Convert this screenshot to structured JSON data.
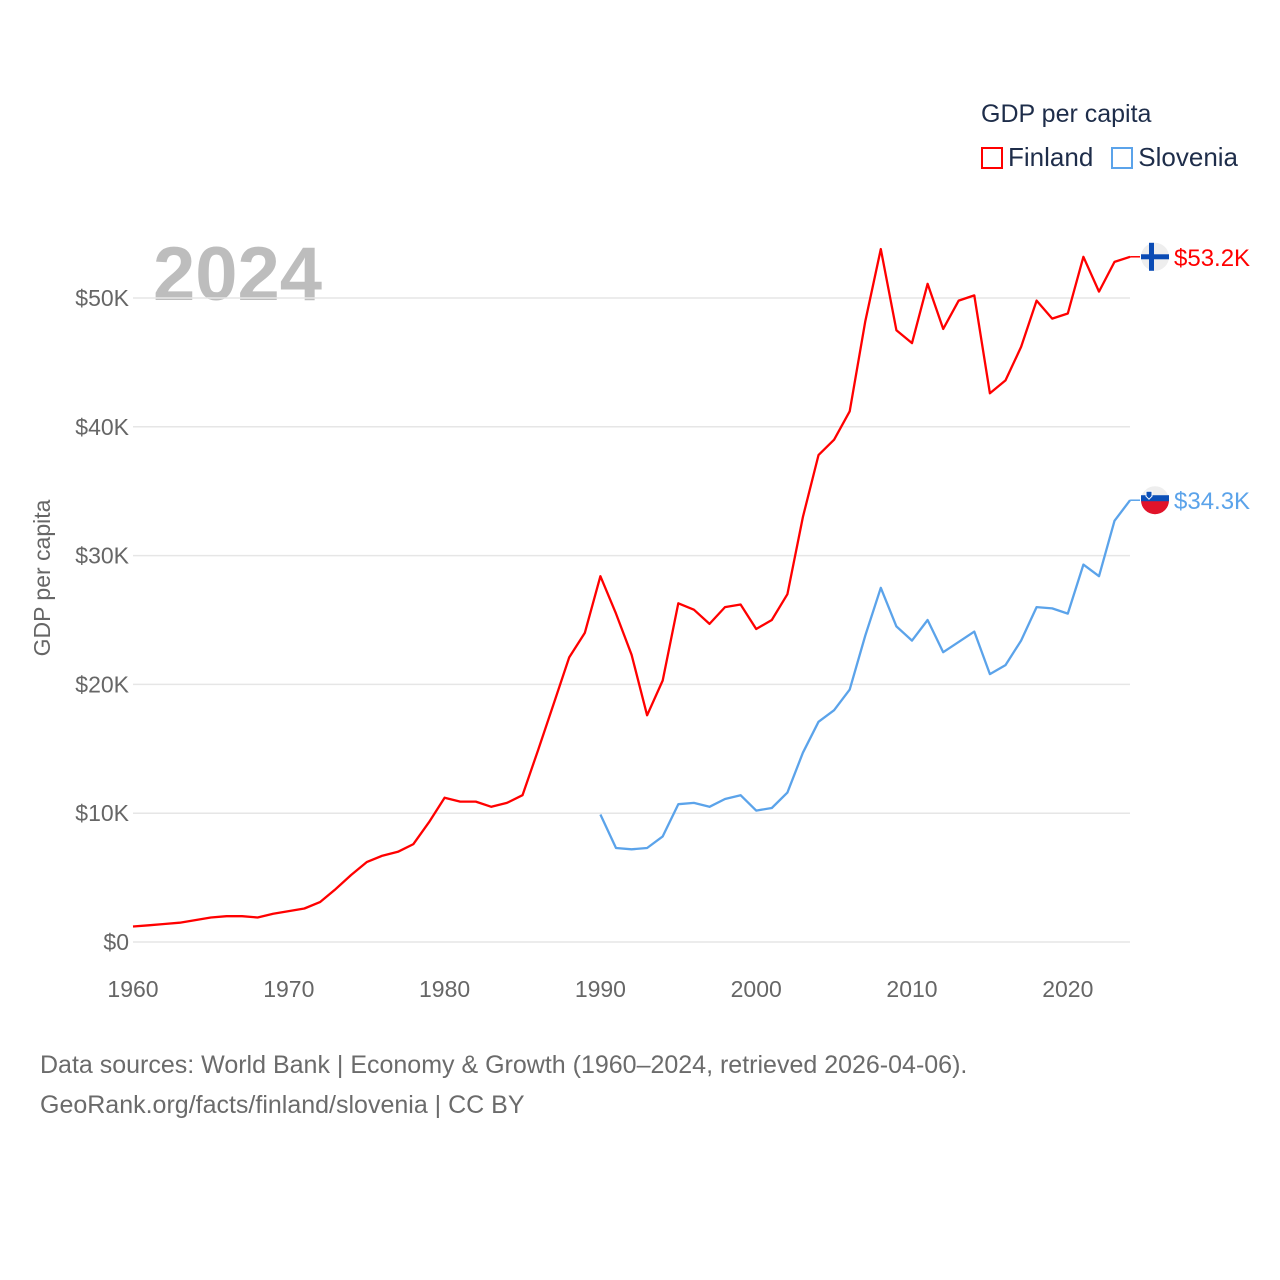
{
  "chart_data": {
    "type": "line",
    "title": "",
    "annotation_year": "2024",
    "xlabel": "",
    "ylabel": "GDP per capita",
    "xlim": [
      1960,
      2024
    ],
    "ylim": [
      0,
      55000
    ],
    "grid": true,
    "x_ticks": [
      "1960",
      "1970",
      "1980",
      "1990",
      "2000",
      "2010",
      "2020"
    ],
    "x_tick_values": [
      1960,
      1970,
      1980,
      1990,
      2000,
      2010,
      2020
    ],
    "y_ticks": [
      "$0",
      "$10K",
      "$20K",
      "$30K",
      "$40K",
      "$50K"
    ],
    "y_tick_values": [
      0,
      10000,
      20000,
      30000,
      40000,
      50000
    ],
    "legend": {
      "title": "GDP per capita",
      "placement": "top-right"
    },
    "series": [
      {
        "name": "Finland",
        "color": "#ff0000",
        "end_label": "$53.2K",
        "flag": "finland-flag",
        "x_start": 1960,
        "values": [
          1200,
          1300,
          1400,
          1500,
          1700,
          1900,
          2000,
          2000,
          1900,
          2200,
          2400,
          2600,
          3100,
          4100,
          5200,
          6200,
          6700,
          7000,
          7600,
          9300,
          11200,
          10900,
          10900,
          10500,
          10800,
          11400,
          14900,
          18500,
          22100,
          24000,
          28400,
          25500,
          22300,
          17600,
          20300,
          26300,
          25800,
          24700,
          26000,
          26200,
          24300,
          25000,
          27000,
          33000,
          37800,
          39000,
          41200,
          48200,
          53800,
          47500,
          46500,
          51100,
          47600,
          49800,
          50200,
          42600,
          43600,
          46200,
          49800,
          48400,
          48800,
          53200,
          50500,
          52800,
          53200
        ]
      },
      {
        "name": "Slovenia",
        "color": "#5ba3ea",
        "end_label": "$34.3K",
        "flag": "slovenia-flag",
        "x_start": 1990,
        "values": [
          9900,
          7300,
          7200,
          7300,
          8200,
          10700,
          10800,
          10500,
          11100,
          11400,
          10200,
          10400,
          11600,
          14700,
          17100,
          18000,
          19600,
          23800,
          27500,
          24500,
          23400,
          25000,
          22500,
          23300,
          24100,
          20800,
          21500,
          23400,
          26000,
          25900,
          25500,
          29300,
          28400,
          32700,
          34300
        ]
      }
    ]
  },
  "footer": {
    "line1": "Data sources: World Bank | Economy & Growth (1960–2024, retrieved 2026-04-06).",
    "line2": "GeoRank.org/facts/finland/slovenia | CC BY"
  }
}
